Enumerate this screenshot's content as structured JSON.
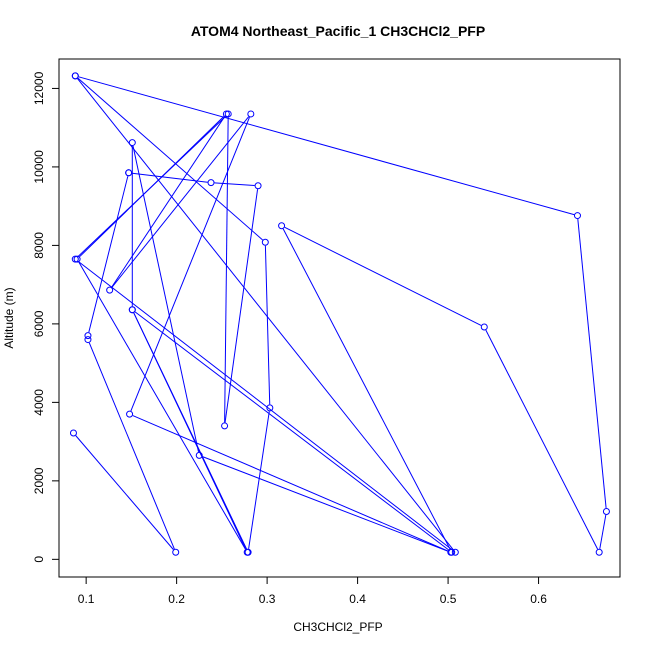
{
  "chart_data": {
    "type": "line",
    "title": "ATOM4 Northeast_Pacific_1 CH3CHCl2_PFP",
    "xlabel": "CH3CHCl2_PFP",
    "ylabel": "Altitude (m)",
    "xlim": [
      0.07,
      0.69
    ],
    "ylim": [
      -450,
      12750
    ],
    "xticks": [
      0.1,
      0.2,
      0.3,
      0.4,
      0.5,
      0.6
    ],
    "xtick_labels": [
      "0.1",
      "0.2",
      "0.3",
      "0.4",
      "0.5",
      "0.6"
    ],
    "yticks": [
      0,
      2000,
      4000,
      6000,
      8000,
      10000,
      12000
    ],
    "ytick_labels": [
      "0",
      "2000",
      "4000",
      "6000",
      "8000",
      "10000",
      "12000"
    ],
    "grid": false,
    "legend": "none",
    "series_color": "#0000ff",
    "markers": "open-circle",
    "series": [
      {
        "x": [
          0.086,
          0.199,
          0.102,
          0.102,
          0.147,
          0.147,
          0.238,
          0.29,
          0.253,
          0.257,
          0.088,
          0.508,
          0.088,
          0.298,
          0.303,
          0.279,
          0.151,
          0.151,
          0.225,
          0.503,
          0.148,
          0.282,
          0.126,
          0.255,
          0.09,
          0.278,
          0.151,
          0.504,
          0.316,
          0.54,
          0.667,
          0.675,
          0.643,
          0.088
        ],
        "y": [
          3220,
          180,
          5600,
          5700,
          9850,
          9850,
          9600,
          9520,
          3400,
          11350,
          7650,
          180,
          12320,
          8080,
          3860,
          180,
          6360,
          10620,
          2650,
          180,
          3700,
          11350,
          6860,
          11350,
          7650,
          180,
          6360,
          180,
          8500,
          5920,
          180,
          1220,
          8760,
          12320
        ]
      }
    ]
  }
}
